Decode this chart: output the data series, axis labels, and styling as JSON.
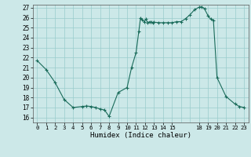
{
  "xlabel": "Humidex (Indice chaleur)",
  "bg_color": "#cce8e8",
  "line_color": "#1a6b5a",
  "grid_color": "#99cccc",
  "ylim": [
    15.5,
    27.3
  ],
  "xlim": [
    -0.5,
    23.5
  ],
  "yticks": [
    16,
    17,
    18,
    19,
    20,
    21,
    22,
    23,
    24,
    25,
    26,
    27
  ],
  "xticks": [
    0,
    1,
    2,
    3,
    4,
    5,
    6,
    7,
    8,
    9,
    10,
    11,
    12,
    13,
    14,
    15,
    18,
    19,
    20,
    21,
    22,
    23
  ],
  "x": [
    0,
    1,
    2,
    3,
    4,
    5,
    5.5,
    6,
    6.5,
    7,
    7.5,
    8,
    9,
    10,
    10.5,
    11,
    11.3,
    11.5,
    11.7,
    11.9,
    12.1,
    12.3,
    12.5,
    12.7,
    12.9,
    13,
    13.5,
    14,
    14.5,
    15,
    15.5,
    16,
    16.5,
    17,
    17.5,
    18,
    18.3,
    18.6,
    19,
    19.3,
    19.6,
    20,
    21,
    22,
    22.5,
    23
  ],
  "y": [
    21.7,
    20.8,
    19.5,
    17.8,
    17.0,
    17.1,
    17.15,
    17.1,
    17.0,
    16.85,
    16.75,
    16.1,
    18.5,
    19.0,
    21.0,
    22.5,
    24.6,
    26.0,
    25.8,
    25.6,
    25.85,
    25.5,
    25.6,
    25.55,
    25.5,
    25.55,
    25.5,
    25.5,
    25.5,
    25.5,
    25.6,
    25.6,
    25.9,
    26.3,
    26.8,
    27.05,
    27.1,
    26.9,
    26.2,
    25.85,
    25.75,
    20.0,
    18.1,
    17.35,
    17.1,
    17.0
  ]
}
